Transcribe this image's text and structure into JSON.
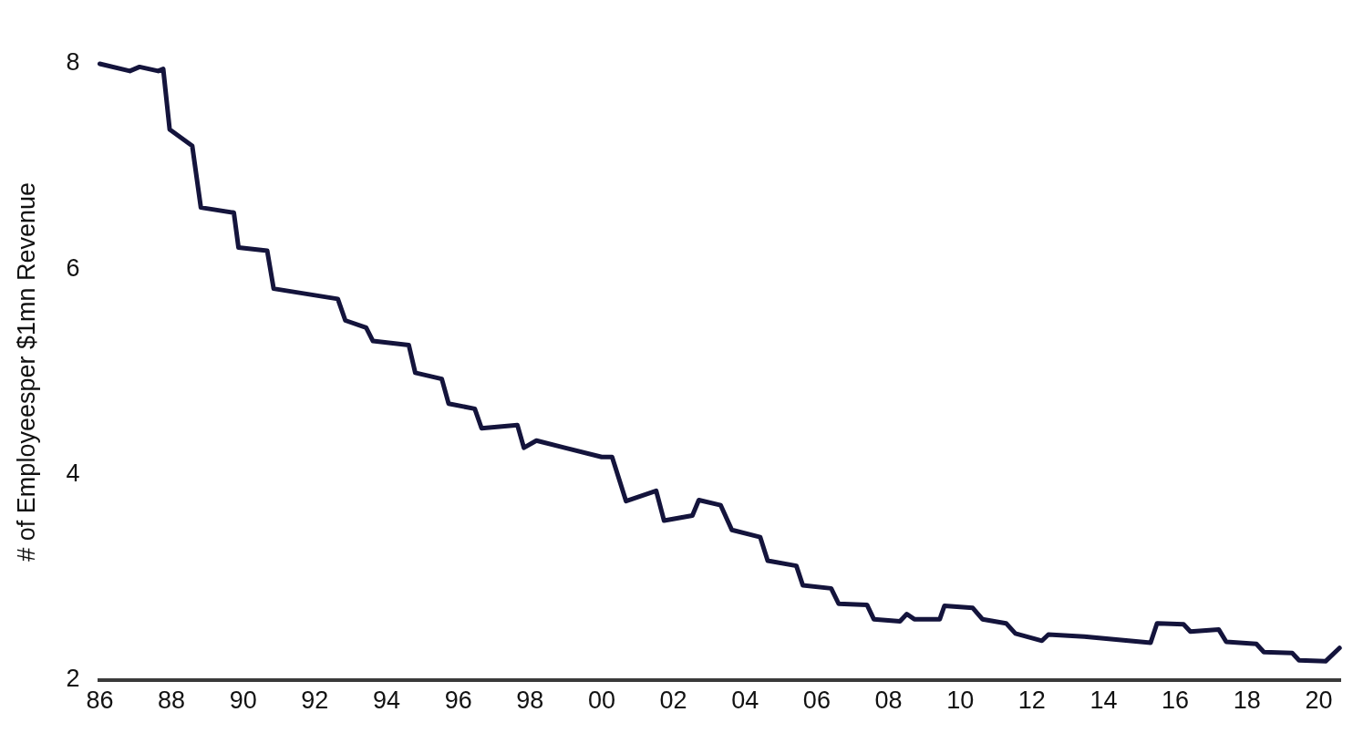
{
  "chart_data": {
    "type": "line",
    "ylabel": "# of Employeesper $1mn Revenue",
    "x": [
      1986.0,
      1986.84,
      1987.11,
      1987.63,
      1987.77,
      1987.95,
      1988.58,
      1988.82,
      1989.74,
      1989.87,
      1990.67,
      1990.85,
      1992.64,
      1992.85,
      1993.43,
      1993.62,
      1994.62,
      1994.8,
      1995.54,
      1995.73,
      1996.46,
      1996.65,
      1997.65,
      1997.83,
      1998.18,
      1998.97,
      2000.0,
      2000.29,
      2000.68,
      2001.52,
      2001.74,
      2002.53,
      2002.71,
      2003.32,
      2003.63,
      2004.42,
      2004.63,
      2005.43,
      2005.61,
      2006.4,
      2006.61,
      2007.4,
      2007.59,
      2008.32,
      2008.51,
      2008.72,
      2009.43,
      2009.56,
      2010.35,
      2010.62,
      2011.28,
      2011.54,
      2012.28,
      2012.46,
      2013.46,
      2015.31,
      2015.49,
      2016.23,
      2016.42,
      2017.21,
      2017.42,
      2018.26,
      2018.47,
      2019.26,
      2019.45,
      2020.19,
      2020.58
    ],
    "series": [
      {
        "color": "#14143c",
        "values": [
          8.0,
          7.93,
          7.97,
          7.93,
          7.95,
          7.36,
          7.2,
          6.6,
          6.55,
          6.21,
          6.18,
          5.81,
          5.71,
          5.5,
          5.43,
          5.3,
          5.26,
          4.99,
          4.93,
          4.69,
          4.64,
          4.45,
          4.48,
          4.26,
          4.33,
          4.26,
          4.17,
          4.17,
          3.74,
          3.84,
          3.55,
          3.6,
          3.75,
          3.7,
          3.46,
          3.39,
          3.16,
          3.11,
          2.92,
          2.89,
          2.74,
          2.73,
          2.59,
          2.57,
          2.64,
          2.59,
          2.59,
          2.72,
          2.7,
          2.59,
          2.55,
          2.45,
          2.38,
          2.44,
          2.42,
          2.36,
          2.55,
          2.54,
          2.47,
          2.49,
          2.37,
          2.35,
          2.27,
          2.26,
          2.19,
          2.18,
          2.31
        ]
      }
    ],
    "xlim": [
      1986,
      2020.6
    ],
    "xticks": [
      {
        "value": 1986,
        "label": "86"
      },
      {
        "value": 1988,
        "label": "88"
      },
      {
        "value": 1990,
        "label": "90"
      },
      {
        "value": 1992,
        "label": "92"
      },
      {
        "value": 1994,
        "label": "94"
      },
      {
        "value": 1996,
        "label": "96"
      },
      {
        "value": 1998,
        "label": "98"
      },
      {
        "value": 2000,
        "label": "00"
      },
      {
        "value": 2002,
        "label": "02"
      },
      {
        "value": 2004,
        "label": "04"
      },
      {
        "value": 2006,
        "label": "06"
      },
      {
        "value": 2008,
        "label": "08"
      },
      {
        "value": 2010,
        "label": "10"
      },
      {
        "value": 2012,
        "label": "12"
      },
      {
        "value": 2014,
        "label": "14"
      },
      {
        "value": 2016,
        "label": "16"
      },
      {
        "value": 2018,
        "label": "18"
      },
      {
        "value": 2020,
        "label": "20"
      }
    ],
    "ylim": [
      2,
      8
    ],
    "yticks": [
      2,
      4,
      6,
      8
    ],
    "grid": false,
    "legend": false,
    "marker": "none",
    "line_style": "solid"
  }
}
